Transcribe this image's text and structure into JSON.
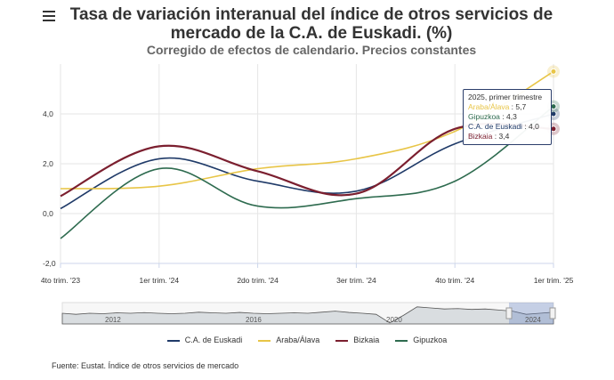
{
  "header": {
    "title": "Tasa de variación interanual del índice de otros servicios de mercado de la C.A. de Euskadi. (%)",
    "subtitle": "Corregido de efectos de calendario. Precios constantes"
  },
  "source": "Fuente: Eustat. Índice de otros servicios de mercado",
  "tooltip": {
    "title": "2025, primer trimestre",
    "rows": [
      {
        "label": "Araba/Álava",
        "value": "5,7",
        "color": "#e8c547"
      },
      {
        "label": "Gipuzkoa",
        "value": "4,3",
        "color": "#2e6b4f"
      },
      {
        "label": "C.A. de Euskadi",
        "value": "4,0",
        "color": "#1f3a68"
      },
      {
        "label": "Bizkaia",
        "value": "3,4",
        "color": "#7b1f2f"
      }
    ]
  },
  "navigator": {
    "labels": [
      "2012",
      "2016",
      "2020",
      "2024"
    ]
  },
  "chart_data": {
    "type": "line",
    "categories": [
      "4to trim. '23",
      "1er trim. '24",
      "2do trim. '24",
      "3er trim. '24",
      "4to trim. '24",
      "1er trim. '25"
    ],
    "ylim": [
      -2,
      6
    ],
    "yticks": [
      "-2,0",
      "0,0",
      "2,0",
      "4,0"
    ],
    "ytick_values": [
      -2,
      0,
      2,
      4
    ],
    "series": [
      {
        "name": "C.A. de Euskadi",
        "color": "#1f3a68",
        "values": [
          0.2,
          2.2,
          1.3,
          0.9,
          2.8,
          4.0
        ]
      },
      {
        "name": "Araba/Álava",
        "color": "#e8c547",
        "values": [
          1.0,
          1.1,
          1.8,
          2.2,
          3.3,
          5.7
        ]
      },
      {
        "name": "Bizkaia",
        "color": "#7b1f2f",
        "values": [
          0.7,
          2.7,
          1.7,
          0.8,
          3.4,
          3.4
        ]
      },
      {
        "name": "Gipuzkoa",
        "color": "#2e6b4f",
        "values": [
          -1.0,
          1.8,
          0.3,
          0.6,
          1.3,
          4.3
        ]
      }
    ]
  }
}
